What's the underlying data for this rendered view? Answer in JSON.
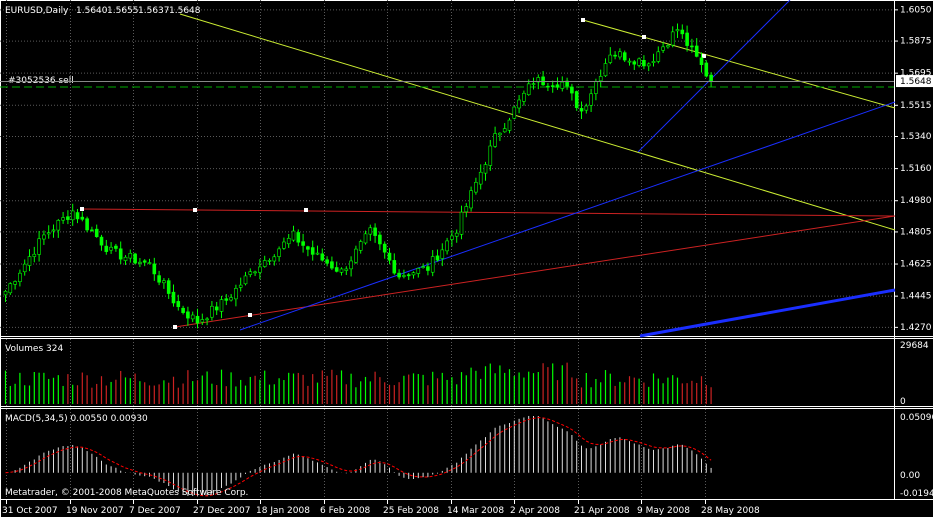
{
  "chart_data": {
    "type": "candlestick",
    "symbol_header": "EURUSD,Daily",
    "ohlc_header": [
      "1.5640",
      "1.5655",
      "1.5637",
      "1.5648"
    ],
    "order_label": "#3052536 sell",
    "current_price_label": "1.5648",
    "current_price": 1.5648,
    "order_price": 1.5615,
    "price_ticks": [
      "1.6050",
      "1.5875",
      "1.5695",
      "1.5515",
      "1.5340",
      "1.5160",
      "1.4980",
      "1.4805",
      "1.4625",
      "1.4445",
      "1.4270"
    ],
    "price_ylim": [
      1.423,
      1.608
    ],
    "date_labels": [
      "31 Oct 2007",
      "19 Nov 2007",
      "7 Dec 2007",
      "27 Dec 2007",
      "18 Jan 2008",
      "6 Feb 2008",
      "25 Feb 2008",
      "14 Mar 2008",
      "2 Apr 2008",
      "21 Apr 2008",
      "9 May 2008",
      "28 May 2008"
    ],
    "bar_count": 148,
    "price_path": [
      [
        0,
        1.447
      ],
      [
        8,
        1.478
      ],
      [
        14,
        1.492
      ],
      [
        22,
        1.469
      ],
      [
        30,
        1.462
      ],
      [
        36,
        1.438
      ],
      [
        40,
        1.43
      ],
      [
        46,
        1.442
      ],
      [
        52,
        1.46
      ],
      [
        60,
        1.478
      ],
      [
        64,
        1.468
      ],
      [
        70,
        1.458
      ],
      [
        76,
        1.48
      ],
      [
        82,
        1.456
      ],
      [
        88,
        1.46
      ],
      [
        94,
        1.482
      ],
      [
        102,
        1.533
      ],
      [
        110,
        1.565
      ],
      [
        116,
        1.564
      ],
      [
        120,
        1.548
      ],
      [
        126,
        1.581
      ],
      [
        134,
        1.575
      ],
      [
        140,
        1.594
      ],
      [
        147,
        1.5648
      ]
    ],
    "volume": {
      "label": "Volumes 324",
      "ticks": [
        "29684",
        "0"
      ],
      "max": 29684
    },
    "macd": {
      "label": "MACD(5,34,5) 0.00550 0.00930",
      "ticks": [
        "0.05096",
        "0.00",
        "-0.01949"
      ],
      "ylim": [
        -0.01949,
        0.05096
      ]
    },
    "copyright": "Metatrader, © 2001-2008 MetaQuotes Software Corp.",
    "colors": {
      "background": "#000000",
      "candle": "#00ff00",
      "grid": "#5a5a5a",
      "text": "#ffffff",
      "channel_yellow": "#ccee33",
      "trend_red": "#cc2222",
      "trend_blue": "#1a2eff",
      "order_line": "#00aa00",
      "macd_signal": "#ff0000"
    }
  }
}
